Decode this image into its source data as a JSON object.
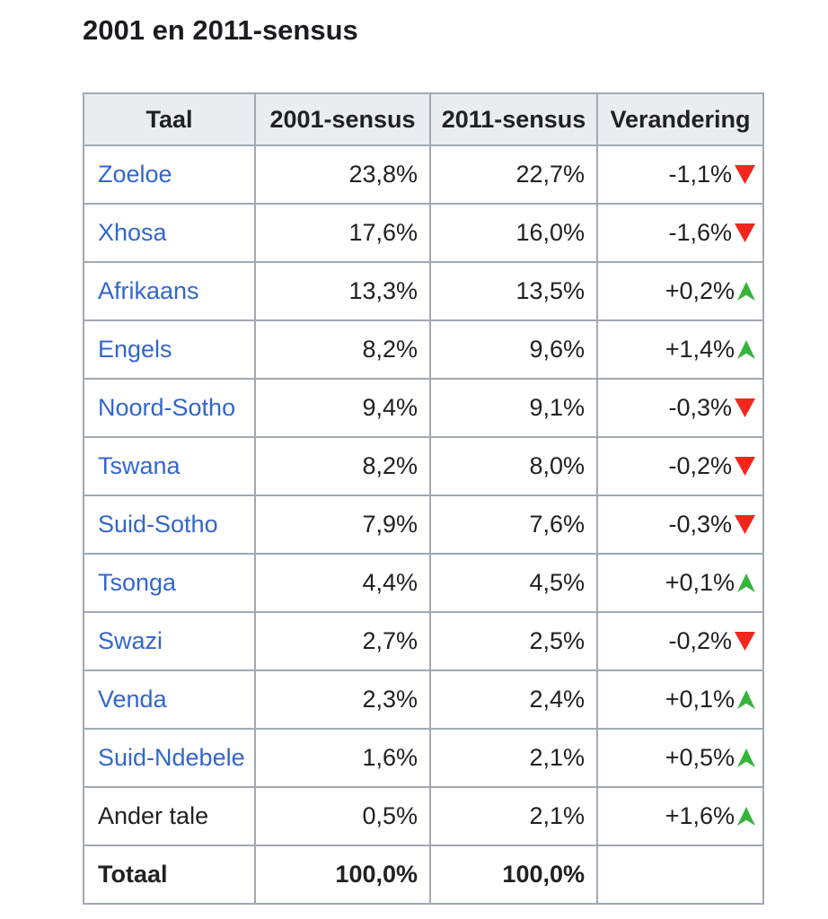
{
  "page": {
    "title": "2001 en 2011-sensus"
  },
  "colors": {
    "link_blue": "#3366cc",
    "header_background": "#eaecf0",
    "table_border": "#a2a9b1",
    "text": "#202122",
    "increase_green": "#35b43a",
    "decrease_red": "#f1261d"
  },
  "table": {
    "columns": [
      "Taal",
      "2001-sensus",
      "2011-sensus",
      "Verandering"
    ],
    "rows": [
      {
        "name": "Zoeloe",
        "name_style": "link",
        "census_2001": "23,8%",
        "census_2011": "22,7%",
        "change": "-1,1%",
        "direction": "down"
      },
      {
        "name": "Xhosa",
        "name_style": "link",
        "census_2001": "17,6%",
        "census_2011": "16,0%",
        "change": "-1,6%",
        "direction": "down"
      },
      {
        "name": "Afrikaans",
        "name_style": "link",
        "census_2001": "13,3%",
        "census_2011": "13,5%",
        "change": "+0,2%",
        "direction": "up"
      },
      {
        "name": "Engels",
        "name_style": "link",
        "census_2001": "8,2%",
        "census_2011": "9,6%",
        "change": "+1,4%",
        "direction": "up"
      },
      {
        "name": "Noord-Sotho",
        "name_style": "link",
        "census_2001": "9,4%",
        "census_2011": "9,1%",
        "change": "-0,3%",
        "direction": "down"
      },
      {
        "name": "Tswana",
        "name_style": "link",
        "census_2001": "8,2%",
        "census_2011": "8,0%",
        "change": "-0,2%",
        "direction": "down"
      },
      {
        "name": "Suid-Sotho",
        "name_style": "link",
        "census_2001": "7,9%",
        "census_2011": "7,6%",
        "change": "-0,3%",
        "direction": "down"
      },
      {
        "name": "Tsonga",
        "name_style": "link",
        "census_2001": "4,4%",
        "census_2011": "4,5%",
        "change": "+0,1%",
        "direction": "up"
      },
      {
        "name": "Swazi",
        "name_style": "link",
        "census_2001": "2,7%",
        "census_2011": "2,5%",
        "change": "-0,2%",
        "direction": "down"
      },
      {
        "name": "Venda",
        "name_style": "link",
        "census_2001": "2,3%",
        "census_2011": "2,4%",
        "change": "+0,1%",
        "direction": "up"
      },
      {
        "name": "Suid-Ndebele",
        "name_style": "link",
        "census_2001": "1,6%",
        "census_2011": "2,1%",
        "change": "+0,5%",
        "direction": "up"
      },
      {
        "name": "Ander tale",
        "name_style": "plain",
        "census_2001": "0,5%",
        "census_2011": "2,1%",
        "change": "+1,6%",
        "direction": "up"
      },
      {
        "name": "Totaal",
        "name_style": "total",
        "census_2001": "100,0%",
        "census_2011": "100,0%",
        "change": "",
        "direction": "none"
      }
    ]
  }
}
